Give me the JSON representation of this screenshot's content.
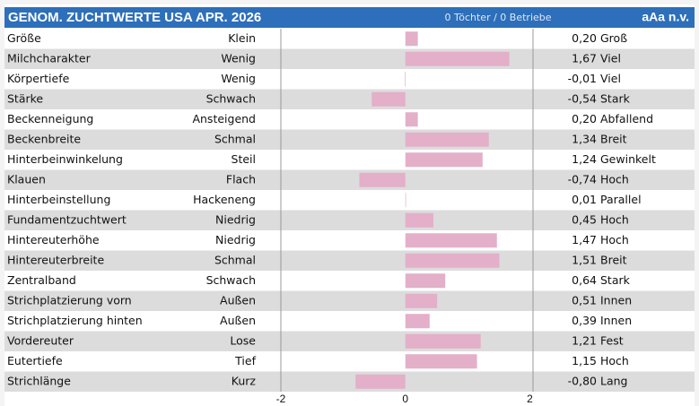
{
  "chart_data": {
    "type": "bar",
    "orientation": "horizontal",
    "title": "GENOM. ZUCHTWERTE USA APR. 2026",
    "subtitle": "0 Töchter / 0 Betriebe",
    "note": "aAa n.v.",
    "categories": [
      "Größe",
      "Milchcharakter",
      "Körpertiefe",
      "Stärke",
      "Beckenneigung",
      "Beckenbreite",
      "Hinterbeinwinkelung",
      "Klauen",
      "Hinterbeinstellung",
      "Fundamentzuchtwert",
      "Hintereuterhöhe",
      "Hintereuterbreite",
      "Zentralband",
      "Strichplatzierung vorn",
      "Strichplatzierung hinten",
      "Vordereuter",
      "Eutertiefe",
      "Strichlänge"
    ],
    "left_labels": [
      "Klein",
      "Wenig",
      "Wenig",
      "Schwach",
      "Ansteigend",
      "Schmal",
      "Steil",
      "Flach",
      "Hackeneng",
      "Niedrig",
      "Niedrig",
      "Schmal",
      "Schwach",
      "Außen",
      "Außen",
      "Lose",
      "Tief",
      "Kurz"
    ],
    "right_labels": [
      "Groß",
      "Viel",
      "Viel",
      "Stark",
      "Abfallend",
      "Breit",
      "Gewinkelt",
      "Hoch",
      "Parallel",
      "Hoch",
      "Hoch",
      "Breit",
      "Stark",
      "Innen",
      "Innen",
      "Fest",
      "Hoch",
      "Lang"
    ],
    "values": [
      0.2,
      1.67,
      -0.01,
      -0.54,
      0.2,
      1.34,
      1.24,
      -0.74,
      0.01,
      0.45,
      1.47,
      1.51,
      0.64,
      0.51,
      0.39,
      1.21,
      1.15,
      -0.8
    ],
    "value_labels": [
      "0,20",
      "1,67",
      "-0,01",
      "-0,54",
      "0,20",
      "1,34",
      "1,24",
      "-0,74",
      "0,01",
      "0,45",
      "1,47",
      "1,51",
      "0,64",
      "0,51",
      "0,39",
      "1,21",
      "1,15",
      "-0,80"
    ],
    "color": "#e3afc9",
    "xlim": [
      -2,
      2.05
    ],
    "xticks": [
      -2,
      0,
      2
    ]
  }
}
